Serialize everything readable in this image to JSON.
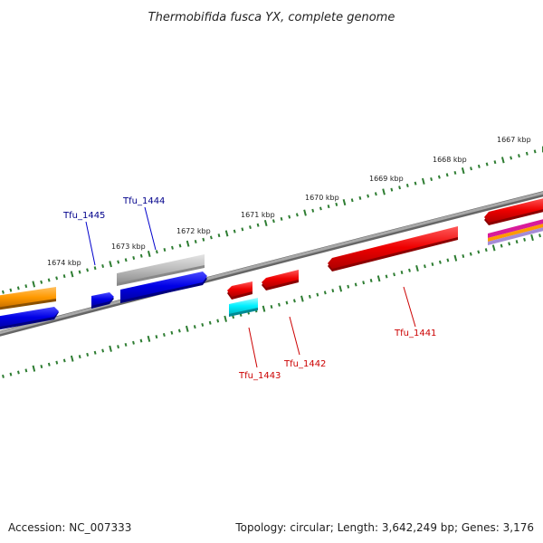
{
  "title": "Thermobifida fusca YX, complete genome",
  "footer": {
    "accession": "Accession: NC_007333",
    "topology": "Topology: circular; Length: 3,642,249 bp; Genes: 3,176"
  },
  "colors": {
    "backbone": "#888888",
    "ticks": "#2e7d32",
    "forward_label": "#00008b",
    "reverse_label": "#cc0000"
  },
  "kbp_labels": [
    "1674 kbp",
    "1673 kbp",
    "1672 kbp",
    "1671 kbp",
    "1670 kbp",
    "1669 kbp",
    "1668 kbp",
    "1667 kbp"
  ],
  "genes": [
    {
      "name": "Tfu_1445",
      "strand": "forward",
      "color": "blue"
    },
    {
      "name": "Tfu_1444",
      "strand": "forward",
      "color": "blue"
    },
    {
      "name": "Tfu_1443",
      "strand": "reverse",
      "color": "red"
    },
    {
      "name": "Tfu_1442",
      "strand": "reverse",
      "color": "red"
    },
    {
      "name": "Tfu_1441",
      "strand": "reverse",
      "color": "red"
    }
  ]
}
